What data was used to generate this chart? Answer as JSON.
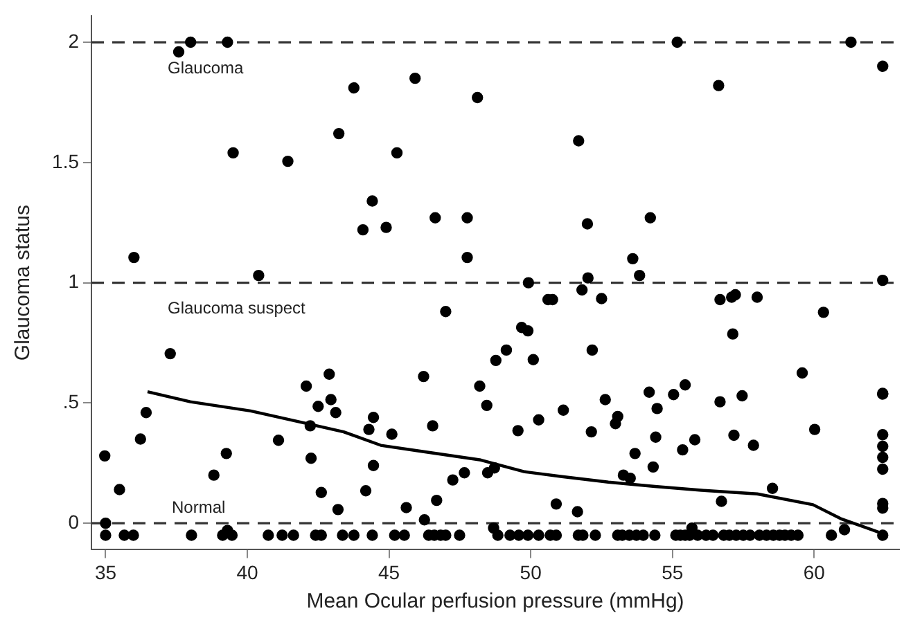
{
  "chart_data": {
    "type": "scatter",
    "xlabel": "Mean Ocular perfusion pressure (mmHg)",
    "ylabel": "Glaucoma status",
    "xlim": [
      34.5,
      63
    ],
    "xticks": [
      35,
      40,
      45,
      50,
      55,
      60
    ],
    "ylim": [
      -0.11,
      2.11
    ],
    "yticks": [
      0,
      {
        "value": 0.5,
        "label": ".5"
      },
      1,
      1.5,
      2
    ],
    "grid": false,
    "legend": false,
    "ref_lines": [
      {
        "axis": "y",
        "value": 2,
        "label": "Glaucoma",
        "line_style": "dashed",
        "color": "#333333"
      },
      {
        "axis": "y",
        "value": 1,
        "label": "Glaucoma suspect",
        "line_style": "dashed",
        "color": "#333333"
      },
      {
        "axis": "y",
        "value": 0,
        "label": "Normal",
        "line_style": "dashed",
        "color": "#333333"
      }
    ],
    "series": [
      {
        "type": "scatter",
        "marker": "circle",
        "color": "#000000",
        "x": [
          37.58,
          38.0,
          39.3,
          36.0,
          39.5,
          40.4,
          41.43,
          43.23,
          43.76,
          44.41,
          44.08,
          44.9,
          45.28,
          45.92,
          46.63,
          47.76,
          47.76,
          48.12,
          55.17,
          61.3,
          62.42,
          56.63,
          51.69,
          52.0,
          54.22,
          53.6,
          53.84,
          52.02,
          49.92,
          62.42,
          34.97,
          35,
          35,
          35.49,
          35.66,
          35.98,
          36.23,
          36.43,
          37.28,
          38.03,
          38.82,
          39.26,
          39.13,
          39.3,
          39.46,
          40.74,
          41.23,
          41.63,
          41.1,
          42.08,
          42.22,
          42.25,
          42.5,
          42.89,
          42.95,
          43.12,
          42.61,
          43.2,
          42.41,
          42.61,
          43.36,
          43.76,
          44.29,
          44.18,
          44.45,
          44.45,
          44.41,
          45.1,
          45.2,
          45.54,
          45.61,
          46.22,
          46.25,
          46.54,
          46.68,
          46.4,
          46.6,
          46.82,
          47.0,
          47.49,
          47.0,
          47.25,
          47.66,
          48.48,
          48.72,
          48.2,
          51.81,
          50.61,
          50.77,
          52.5,
          56.68,
          57.09,
          57.22,
          57.99,
          60.33,
          57.13,
          49.68,
          49.9,
          49.14,
          48.77,
          50.09,
          52.17,
          48.45,
          49.55,
          50.28,
          51.15,
          52.14,
          52.63,
          53.07,
          52.99,
          53.68,
          54.18,
          54.46,
          54.41,
          54.32,
          55.04,
          55.45,
          55.36,
          55.79,
          53.27,
          53.51,
          56.68,
          57.46,
          57.17,
          57.86,
          59.58,
          60.02,
          58.53,
          56.73,
          50.9,
          51.65,
          48.69,
          55.69,
          61.07,
          60.61,
          62.42,
          62.42,
          62.42,
          62.42,
          62.42,
          62.42,
          62.42,
          62.42,
          62.42,
          48.84,
          49.27,
          49.58,
          49.9,
          50.28,
          50.69,
          50.9,
          51.68,
          51.84,
          52.28,
          53.07,
          53.23,
          53.48,
          53.73,
          53.97,
          54.38,
          55.12,
          55.28,
          55.45,
          55.61,
          55.89,
          56.19,
          56.43,
          56.81,
          57.01,
          57.25,
          57.5,
          57.74,
          58.07,
          58.32,
          58.56,
          58.78,
          58.97,
          59.19,
          59.43
        ],
        "values": [
          1.96,
          2.0,
          2.0,
          1.105,
          1.54,
          1.03,
          1.505,
          1.62,
          1.81,
          1.34,
          1.22,
          1.23,
          1.54,
          1.85,
          1.27,
          1.27,
          1.105,
          1.77,
          2.0,
          2.0,
          1.9,
          1.82,
          1.59,
          1.245,
          1.27,
          1.1,
          1.03,
          1.02,
          1.0,
          1.01,
          0.28,
          0.0,
          -0.05,
          0.14,
          -0.05,
          -0.05,
          0.35,
          0.46,
          0.705,
          -0.05,
          0.2,
          0.29,
          -0.05,
          -0.03,
          -0.05,
          -0.05,
          -0.05,
          -0.05,
          0.345,
          0.57,
          0.405,
          0.27,
          0.486,
          0.62,
          0.514,
          0.46,
          0.128,
          0.057,
          -0.05,
          -0.05,
          -0.05,
          -0.05,
          0.39,
          0.135,
          0.44,
          0.24,
          -0.05,
          0.37,
          -0.05,
          -0.05,
          0.065,
          0.61,
          0.014,
          0.405,
          0.095,
          -0.05,
          -0.05,
          -0.05,
          -0.05,
          -0.05,
          0.88,
          0.18,
          0.21,
          0.21,
          0.23,
          0.57,
          0.97,
          0.93,
          0.93,
          0.934,
          0.93,
          0.94,
          0.95,
          0.94,
          0.877,
          0.787,
          0.814,
          0.8,
          0.72,
          0.677,
          0.68,
          0.72,
          0.49,
          0.385,
          0.43,
          0.47,
          0.38,
          0.514,
          0.444,
          0.414,
          0.29,
          0.545,
          0.477,
          0.358,
          0.234,
          0.535,
          0.575,
          0.305,
          0.347,
          0.2,
          0.187,
          0.505,
          0.53,
          0.366,
          0.324,
          0.625,
          0.39,
          0.145,
          0.091,
          0.08,
          0.048,
          -0.02,
          -0.02,
          -0.027,
          -0.05,
          0.54,
          0.537,
          0.368,
          0.32,
          0.274,
          0.225,
          0.082,
          0.063,
          -0.05,
          -0.05,
          -0.05,
          -0.05,
          -0.05,
          -0.05,
          -0.05,
          -0.05,
          -0.05,
          -0.05,
          -0.05,
          -0.05,
          -0.05,
          -0.05,
          -0.05,
          -0.05,
          -0.05,
          -0.05,
          -0.05,
          -0.05,
          -0.05,
          -0.05,
          -0.05,
          -0.05,
          -0.05,
          -0.05,
          -0.05,
          -0.05,
          -0.05,
          -0.05,
          -0.05,
          -0.05,
          -0.05,
          -0.05,
          -0.05,
          -0.05
        ]
      },
      {
        "type": "line",
        "marker": "none",
        "line_style": "solid",
        "color": "#000000",
        "x": [
          36.48,
          37.99,
          40.12,
          42.08,
          43.4,
          44.71,
          46.02,
          48.24,
          49.79,
          51.1,
          52.74,
          54.38,
          56.02,
          57.99,
          59.96,
          60.94,
          62.42
        ],
        "values": [
          0.547,
          0.505,
          0.467,
          0.415,
          0.38,
          0.324,
          0.301,
          0.263,
          0.214,
          0.194,
          0.171,
          0.153,
          0.137,
          0.122,
          0.077,
          0.019,
          -0.043
        ]
      }
    ]
  }
}
